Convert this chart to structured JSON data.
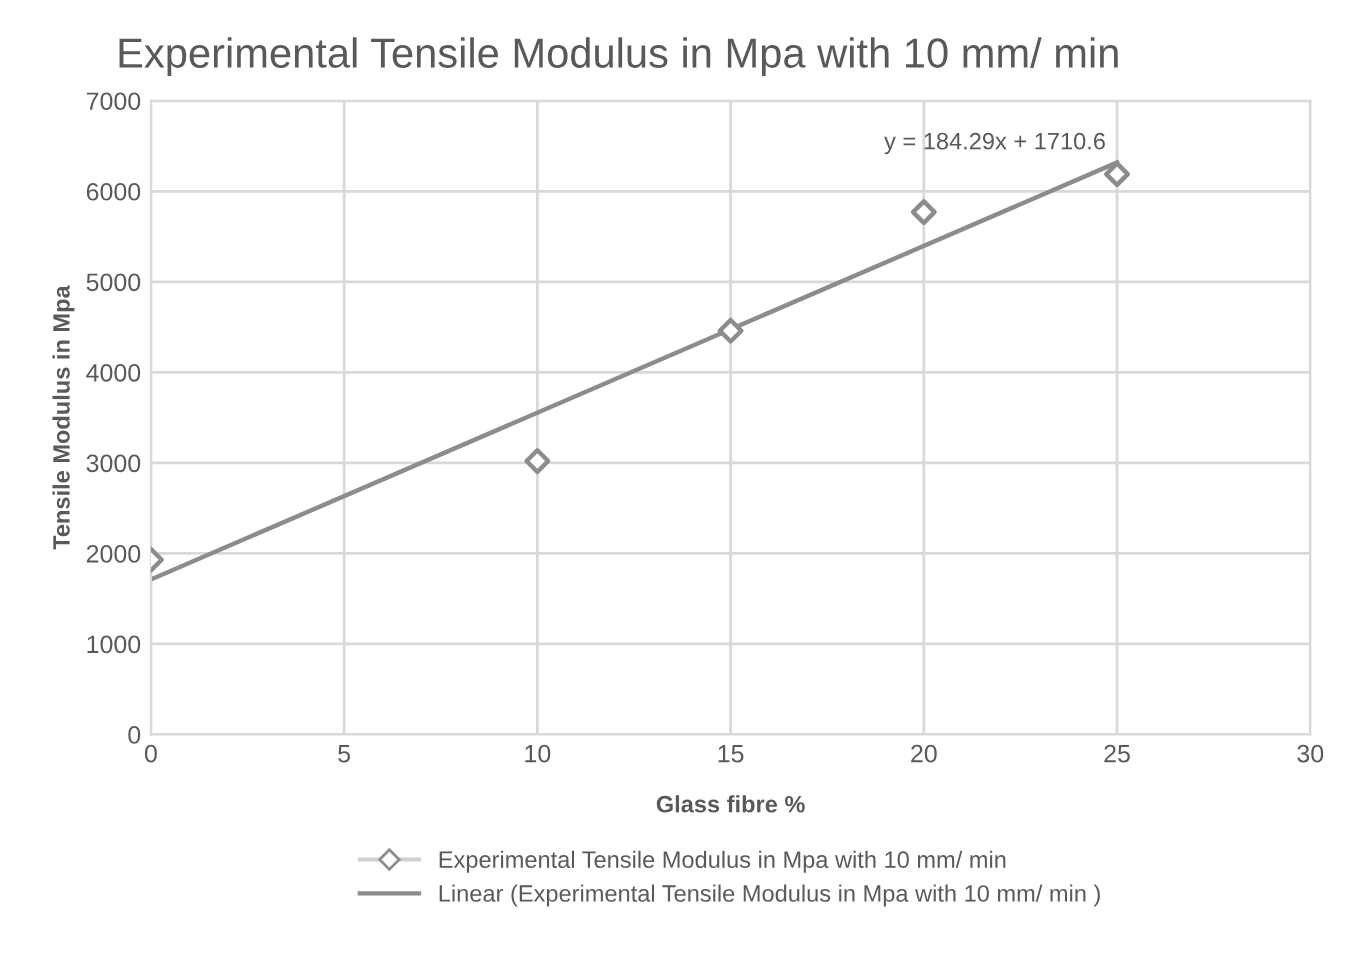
{
  "chart_data": {
    "type": "scatter",
    "title": "Experimental Tensile Modulus in Mpa with 10 mm/ min",
    "xlabel": "Glass fibre %",
    "ylabel": "Tensile Modulus in Mpa",
    "x": [
      0,
      10,
      15,
      20,
      25
    ],
    "series": [
      {
        "name": "Experimental Tensile Modulus in Mpa with 10 mm/ min",
        "color": "#8c8c8c",
        "marker": "diamond",
        "values": [
          1930,
          3020,
          4460,
          5770,
          6190
        ]
      },
      {
        "name": "Linear (Experimental Tensile Modulus in Mpa with 10 mm/ min )",
        "color": "#8c8c8c",
        "type": "line",
        "marker": "none",
        "line_style": "solid",
        "x": [
          0,
          25
        ],
        "values": [
          1711,
          6318
        ]
      }
    ],
    "annotations": [
      {
        "text": "y = 184.29x + 1710.6",
        "x": 25,
        "y": 6318
      }
    ],
    "xlim": [
      0,
      30
    ],
    "xticks": [
      0,
      5,
      10,
      15,
      20,
      25,
      30
    ],
    "ylim": [
      0,
      7000
    ],
    "yticks": [
      0,
      1000,
      2000,
      3000,
      4000,
      5000,
      6000,
      7000
    ],
    "grid": true,
    "legend": "bottom"
  }
}
